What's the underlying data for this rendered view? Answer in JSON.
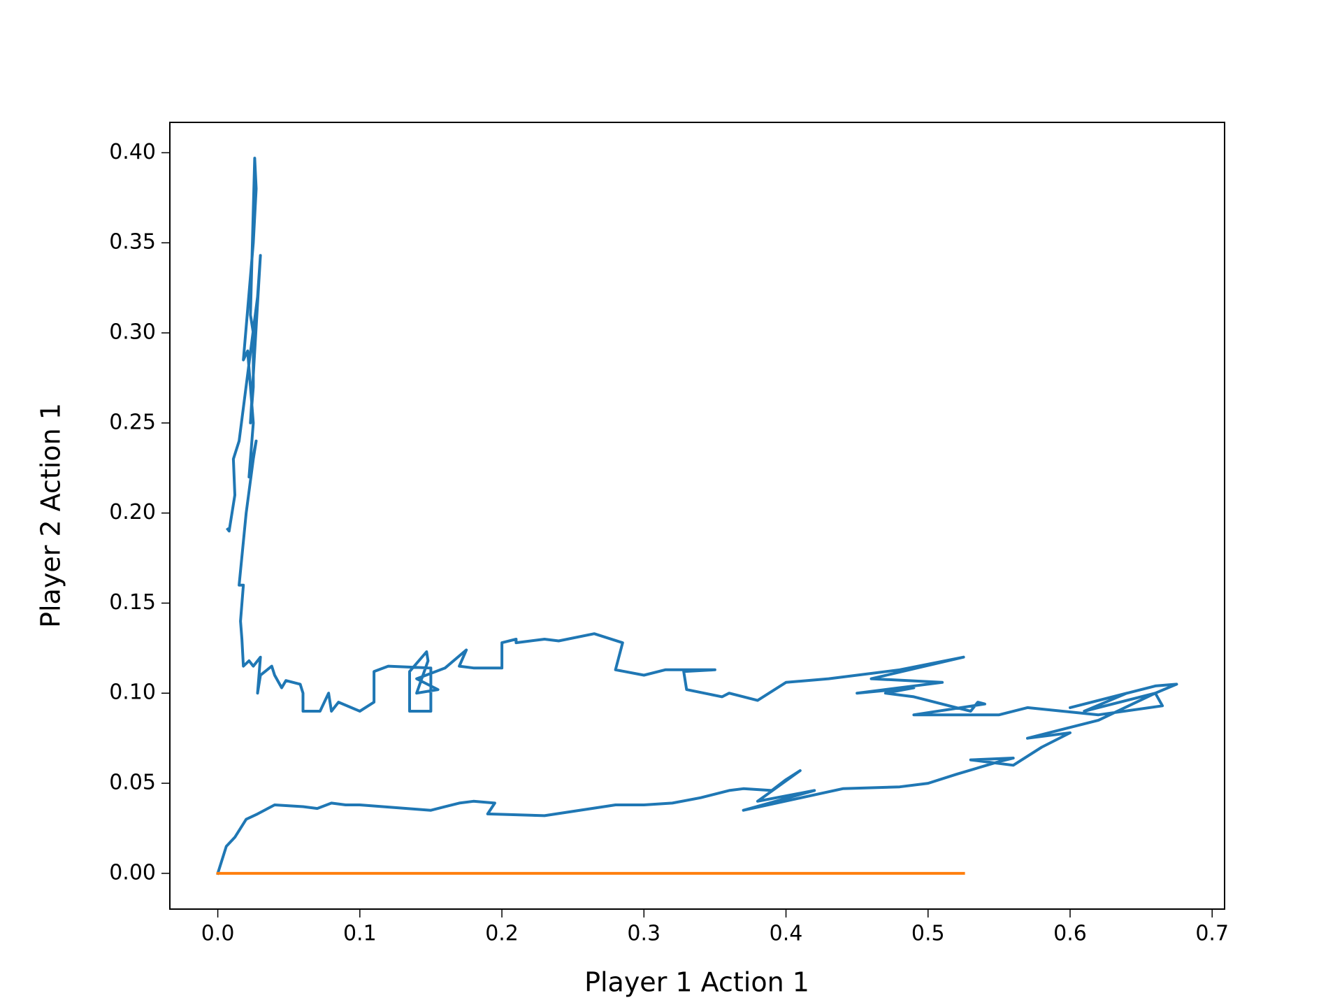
{
  "chart_data": {
    "type": "line",
    "xlabel": "Player 1 Action 1",
    "ylabel": "Player 2 Action 1",
    "xlim": [
      -0.03375,
      0.70875
    ],
    "ylim": [
      -0.01985,
      0.41685
    ],
    "xticks": [
      {
        "value": 0,
        "label": "0.0"
      },
      0.1,
      0.2,
      0.3,
      0.4,
      0.5,
      0.6,
      0.7
    ],
    "yticks": [
      {
        "value": 0,
        "label": "0.00"
      },
      0.05,
      {
        "value": 0.1,
        "label": "0.10"
      },
      0.15,
      {
        "value": 0.2,
        "label": "0.20"
      },
      0.25,
      {
        "value": 0.3,
        "label": "0.30"
      },
      0.35,
      {
        "value": 0.4,
        "label": "0.40"
      }
    ],
    "series": [
      {
        "color": "#1f77b4",
        "x": [
          0,
          0.006,
          0.012,
          0.02,
          0.028,
          0.04,
          0.06,
          0.07,
          0.08,
          0.09,
          0.1,
          0.15,
          0.17,
          0.18,
          0.195,
          0.19,
          0.23,
          0.28,
          0.3,
          0.32,
          0.34,
          0.36,
          0.37,
          0.39,
          0.4,
          0.41,
          0.38,
          0.42,
          0.37,
          0.44,
          0.48,
          0.5,
          0.52,
          0.55,
          0.56,
          0.53,
          0.56,
          0.58,
          0.6,
          0.57,
          0.62,
          0.66,
          0.675,
          0.66,
          0.6,
          0.64,
          0.61,
          0.66,
          0.665,
          0.62,
          0.57,
          0.55,
          0.49,
          0.54,
          0.535,
          0.53,
          0.52,
          0.49,
          0.47,
          0.49,
          0.45,
          0.51,
          0.46,
          0.525,
          0.48,
          0.43,
          0.4,
          0.38,
          0.36,
          0.355,
          0.33,
          0.328,
          0.35,
          0.315,
          0.3,
          0.28,
          0.285,
          0.265,
          0.24,
          0.23,
          0.21,
          0.21,
          0.2,
          0.2,
          0.18,
          0.17,
          0.175,
          0.16,
          0.14,
          0.155,
          0.14,
          0.148,
          0.147,
          0.135,
          0.135,
          0.15,
          0.15,
          0.12,
          0.11,
          0.11,
          0.1,
          0.085,
          0.08,
          0.078,
          0.072,
          0.06,
          0.06,
          0.058,
          0.048,
          0.045,
          0.04,
          0.038,
          0.03,
          0.028,
          0.03,
          0.025,
          0.022,
          0.018,
          0.017,
          0.016,
          0.018,
          0.015,
          0.02,
          0.025,
          0.027,
          0.022,
          0.025,
          0.021,
          0.018,
          0.025,
          0.027,
          0.026,
          0.024,
          0.023,
          0.025,
          0.025,
          0.023,
          0.03,
          0.028,
          0.015,
          0.011,
          0.012,
          0.008,
          0.007
        ],
        "values": [
          0,
          0.015,
          0.02,
          0.03,
          0.033,
          0.038,
          0.037,
          0.036,
          0.039,
          0.038,
          0.038,
          0.035,
          0.039,
          0.04,
          0.039,
          0.033,
          0.032,
          0.038,
          0.038,
          0.039,
          0.042,
          0.046,
          0.047,
          0.046,
          0.052,
          0.057,
          0.04,
          0.046,
          0.035,
          0.047,
          0.048,
          0.05,
          0.055,
          0.062,
          0.064,
          0.063,
          0.06,
          0.07,
          0.078,
          0.075,
          0.085,
          0.1,
          0.105,
          0.104,
          0.092,
          0.1,
          0.09,
          0.1,
          0.093,
          0.088,
          0.092,
          0.088,
          0.088,
          0.094,
          0.095,
          0.09,
          0.092,
          0.098,
          0.1,
          0.103,
          0.1,
          0.106,
          0.108,
          0.12,
          0.113,
          0.108,
          0.106,
          0.096,
          0.1,
          0.098,
          0.102,
          0.112,
          0.113,
          0.113,
          0.11,
          0.113,
          0.128,
          0.133,
          0.129,
          0.13,
          0.128,
          0.13,
          0.128,
          0.114,
          0.114,
          0.115,
          0.124,
          0.114,
          0.108,
          0.102,
          0.1,
          0.118,
          0.123,
          0.112,
          0.09,
          0.09,
          0.114,
          0.115,
          0.112,
          0.095,
          0.09,
          0.095,
          0.09,
          0.1,
          0.09,
          0.09,
          0.1,
          0.105,
          0.107,
          0.103,
          0.11,
          0.115,
          0.11,
          0.1,
          0.12,
          0.115,
          0.118,
          0.115,
          0.13,
          0.14,
          0.16,
          0.16,
          0.2,
          0.23,
          0.24,
          0.22,
          0.25,
          0.29,
          0.285,
          0.35,
          0.38,
          0.397,
          0.34,
          0.31,
          0.3,
          0.27,
          0.25,
          0.343,
          0.32,
          0.24,
          0.23,
          0.21,
          0.19,
          0.191
        ]
      },
      {
        "color": "#ff7f0e",
        "x": [
          0,
          0.525
        ],
        "values": [
          0,
          0
        ]
      }
    ]
  }
}
